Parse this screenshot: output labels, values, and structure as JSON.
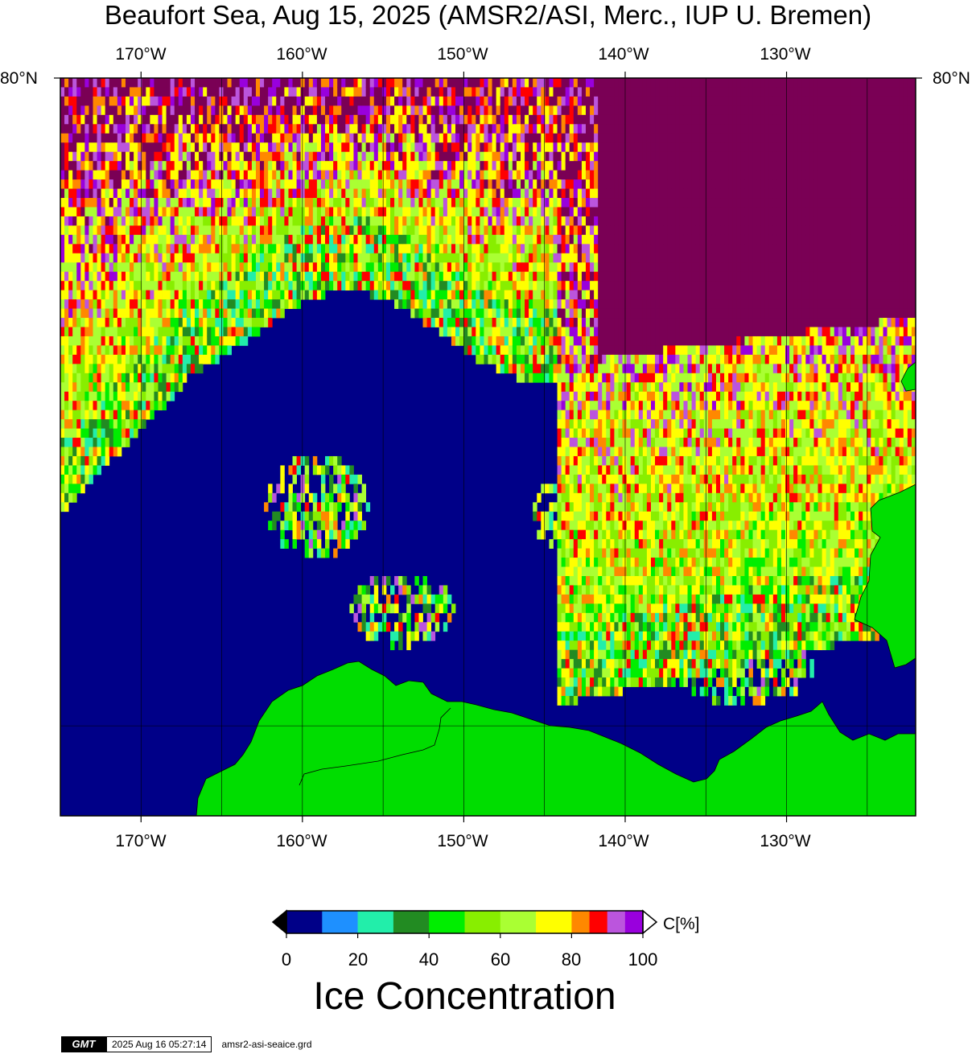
{
  "title": "Beaufort Sea, Aug 15, 2025 (AMSR2/ASI, Merc., IUP U. Bremen)",
  "map": {
    "projection": "Merc.",
    "lon_labels": [
      "170°W",
      "160°W",
      "150°W",
      "140°W",
      "130°W"
    ],
    "lon_values": [
      -170,
      -160,
      -150,
      -140,
      -130
    ],
    "lat_labels": [
      "80°N",
      "80°N"
    ],
    "lat_value": 80,
    "extent": {
      "lon_min": -175,
      "lon_max": -122
    },
    "colors": {
      "ocean": "#000088",
      "land": "#00dd00",
      "gridline": "#000000"
    }
  },
  "colorbar": {
    "ticks": [
      "0",
      "20",
      "40",
      "60",
      "80",
      "100"
    ],
    "unit": "C[%]",
    "title": "Ice Concentration",
    "bins": [
      {
        "from": 0,
        "to": 10,
        "color": "#000088"
      },
      {
        "from": 10,
        "to": 20,
        "color": "#1e90ff"
      },
      {
        "from": 20,
        "to": 30,
        "color": "#22eeaa"
      },
      {
        "from": 30,
        "to": 40,
        "color": "#228b22"
      },
      {
        "from": 40,
        "to": 50,
        "color": "#00ee00"
      },
      {
        "from": 50,
        "to": 60,
        "color": "#88ee00"
      },
      {
        "from": 60,
        "to": 70,
        "color": "#aaff33"
      },
      {
        "from": 70,
        "to": 80,
        "color": "#ffff00"
      },
      {
        "from": 80,
        "to": 85,
        "color": "#ff8800"
      },
      {
        "from": 85,
        "to": 90,
        "color": "#ff0000"
      },
      {
        "from": 90,
        "to": 95,
        "color": "#bb55dd"
      },
      {
        "from": 95,
        "to": 100,
        "color": "#9900dd"
      }
    ],
    "below_color": "#000000",
    "above_color": "#ffffff"
  },
  "footer": {
    "logo_text": "GMT",
    "timestamp": "2025 Aug 16 05:27:14",
    "grid_file": "amsr2-asi-seaice.grd"
  }
}
